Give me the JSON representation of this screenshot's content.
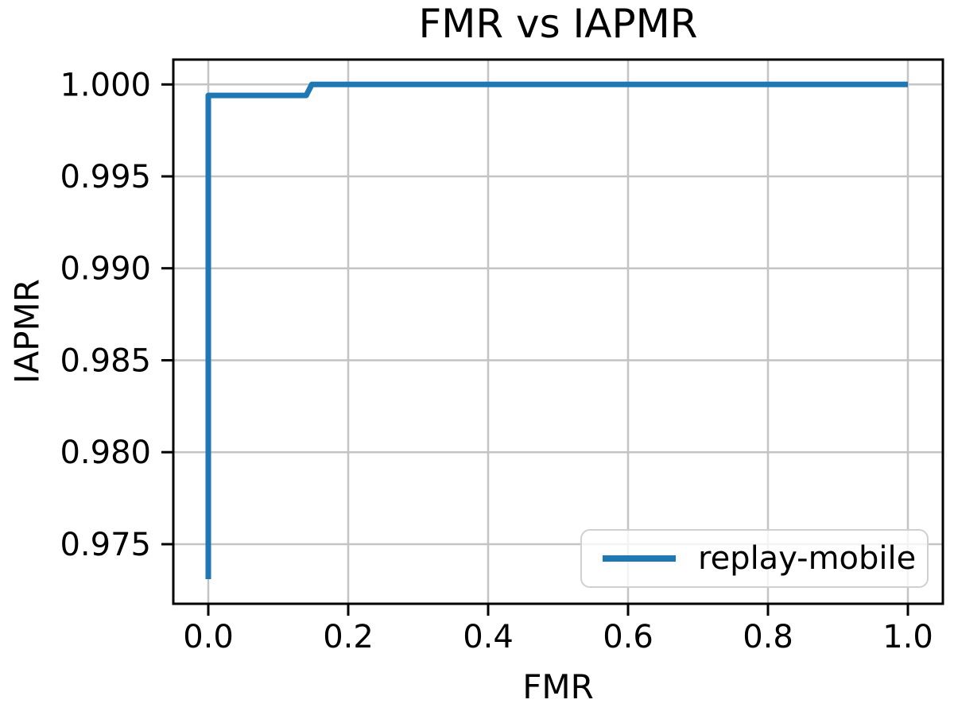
{
  "chart_data": {
    "type": "line",
    "title": "FMR vs IAPMR",
    "xlabel": "FMR",
    "ylabel": "IAPMR",
    "xlim": [
      -0.05,
      1.05
    ],
    "ylim": [
      0.97176,
      1.00135
    ],
    "x_ticks": [
      0.0,
      0.2,
      0.4,
      0.6,
      0.8,
      1.0
    ],
    "x_tick_labels": [
      "0.0",
      "0.2",
      "0.4",
      "0.6",
      "0.8",
      "1.0"
    ],
    "y_ticks": [
      0.975,
      0.98,
      0.985,
      0.99,
      0.995,
      1.0
    ],
    "y_tick_labels": [
      "0.975",
      "0.980",
      "0.985",
      "0.990",
      "0.995",
      "1.000"
    ],
    "grid": true,
    "legend": {
      "position": "lower right",
      "entries": [
        {
          "label": "replay-mobile",
          "color": "#1f77b4"
        }
      ]
    },
    "series": [
      {
        "name": "replay-mobile",
        "color": "#1f77b4",
        "points": [
          [
            0.0,
            0.9731
          ],
          [
            0.0,
            0.9994
          ],
          [
            0.14,
            0.9994
          ],
          [
            0.148,
            1.0
          ],
          [
            1.0,
            1.0
          ]
        ]
      }
    ],
    "colors": {
      "line": "#1f77b4",
      "grid": "#c4c4c4",
      "spine": "#000000",
      "background": "#ffffff",
      "legend_border": "#d0d0d0",
      "text": "#000000"
    }
  }
}
